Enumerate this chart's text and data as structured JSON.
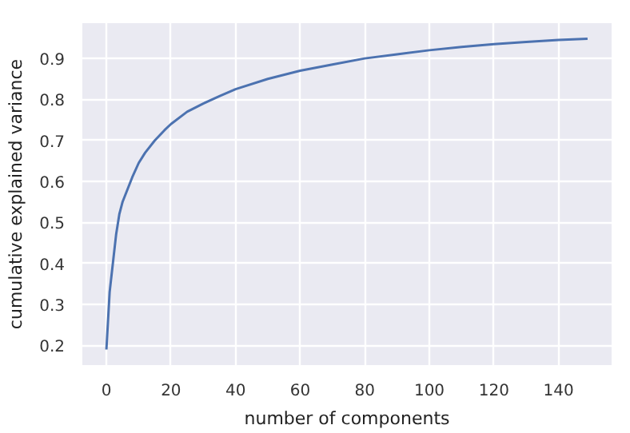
{
  "chart_data": {
    "type": "line",
    "xlabel": "number of components",
    "ylabel": "cumulative explained variance",
    "x": [
      0,
      1,
      2,
      3,
      4,
      5,
      6,
      8,
      10,
      12,
      15,
      18,
      20,
      25,
      30,
      35,
      40,
      50,
      60,
      70,
      80,
      90,
      100,
      110,
      120,
      130,
      140,
      149
    ],
    "series": [
      {
        "color": "#4c72b0",
        "values": [
          0.19,
          0.33,
          0.4,
          0.47,
          0.52,
          0.55,
          0.57,
          0.61,
          0.645,
          0.67,
          0.7,
          0.725,
          0.74,
          0.77,
          0.79,
          0.808,
          0.825,
          0.85,
          0.87,
          0.885,
          0.9,
          0.91,
          0.92,
          0.928,
          0.935,
          0.94,
          0.945,
          0.948
        ]
      }
    ],
    "xlim": [
      -7.45,
      156.45
    ],
    "ylim": [
      0.152,
      0.986
    ],
    "xticks": [
      0,
      20,
      40,
      60,
      80,
      100,
      120,
      140
    ],
    "yticks": [
      0.2,
      0.3,
      0.4,
      0.5,
      0.6,
      0.7,
      0.8,
      0.9
    ],
    "grid": true,
    "line_style": "solid"
  }
}
